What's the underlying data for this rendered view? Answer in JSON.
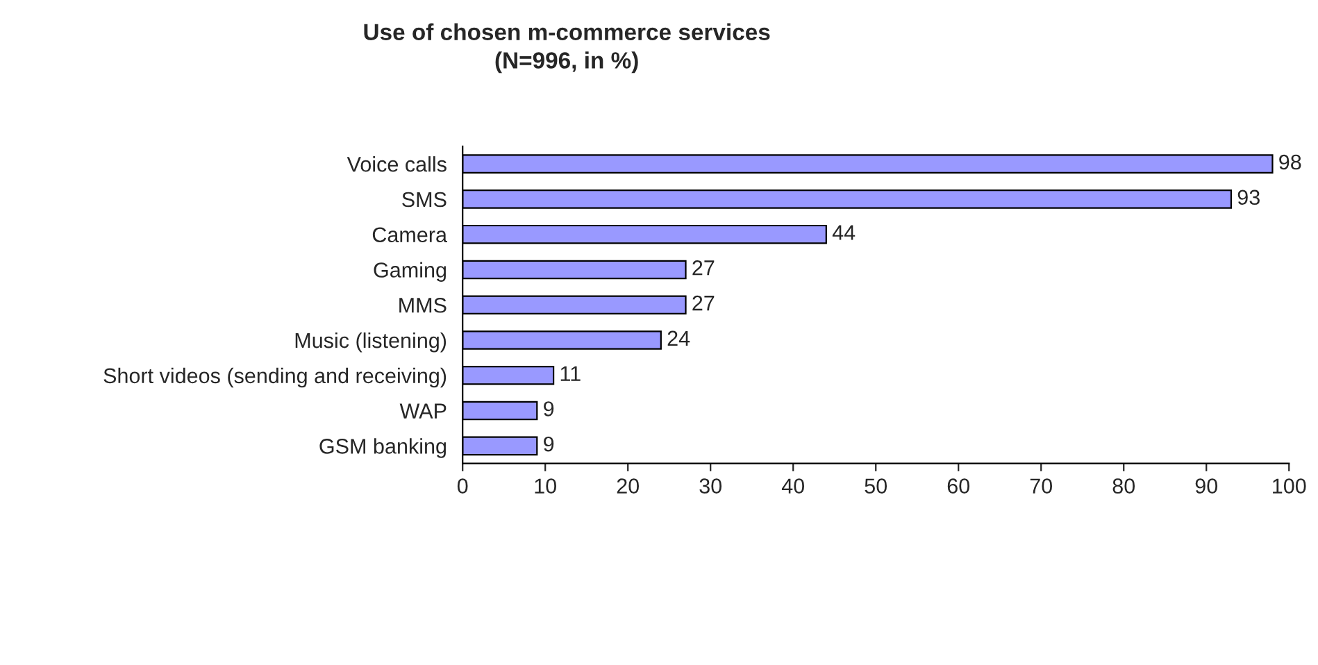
{
  "chart_data": {
    "type": "bar",
    "orientation": "horizontal",
    "title": "Use of chosen m-commerce services\n(N=996, in %)",
    "categories": [
      "Voice calls",
      "SMS",
      "Camera",
      "Gaming",
      "MMS",
      "Music (listening)",
      "Short videos (sending and receiving)",
      "WAP",
      "GSM banking"
    ],
    "values": [
      98,
      93,
      44,
      27,
      27,
      24,
      11,
      9,
      9
    ],
    "color": "#9999ff",
    "xlim": [
      0,
      100
    ],
    "xticks": [
      0,
      10,
      20,
      30,
      40,
      50,
      60,
      70,
      80,
      90,
      100
    ],
    "data_labels": true,
    "grid": false,
    "legend": false
  }
}
